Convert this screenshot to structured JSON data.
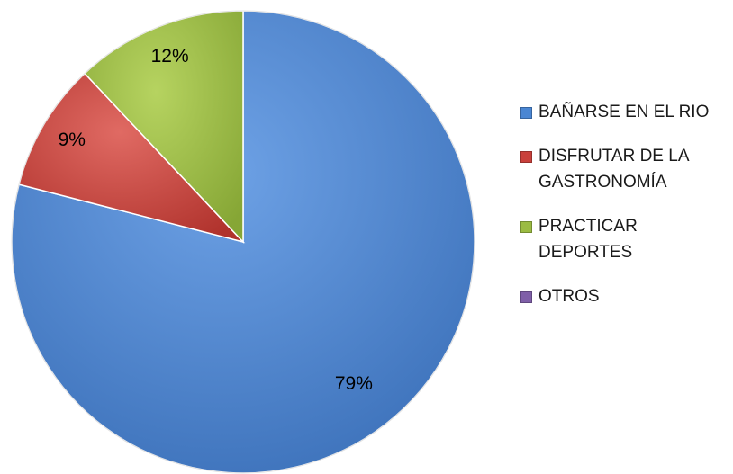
{
  "chart_data": {
    "type": "pie",
    "categories": [
      "BAÑARSE EN EL RIO",
      "DISFRUTAR DE LA GASTRONOMÍA",
      "PRACTICAR DEPORTES",
      "OTROS"
    ],
    "values": [
      79,
      9,
      12,
      0
    ],
    "data_labels": [
      "79%",
      "9%",
      "12%",
      ""
    ],
    "colors": [
      "#4a86d3",
      "#c9403b",
      "#9bbb42",
      "#7f5fa8"
    ],
    "legend_position": "right",
    "start_angle": "12 o'clock",
    "direction": "clockwise"
  },
  "legend": {
    "items": [
      {
        "label": "BAÑARSE EN EL RIO",
        "color": "#4a86d3"
      },
      {
        "label": "DISFRUTAR DE LA GASTRONOMÍA",
        "color": "#c9403b"
      },
      {
        "label": "PRACTICAR DEPORTES",
        "color": "#9bbb42"
      },
      {
        "label": "OTROS",
        "color": "#7f5fa8"
      }
    ]
  }
}
